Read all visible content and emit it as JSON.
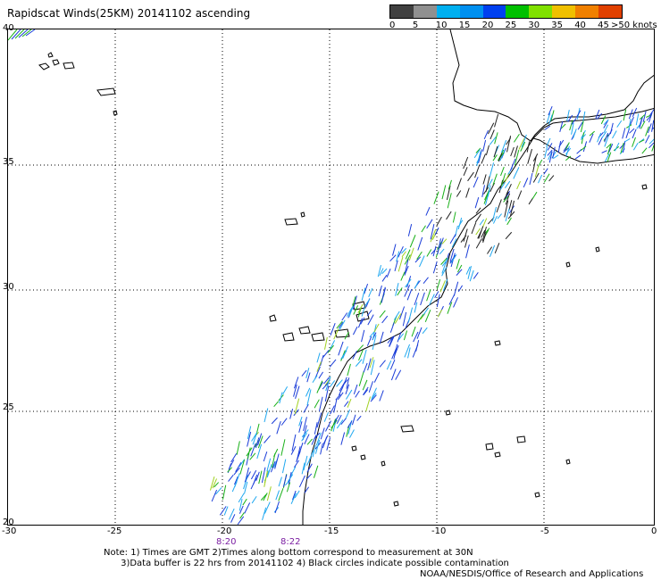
{
  "title": "Rapidscat Winds(25KM) 20141102 ascending",
  "legend": {
    "colors": [
      "#404040",
      "#909090",
      "#00b0f0",
      "#0090f0",
      "#0040f0",
      "#00c000",
      "#80e000",
      "#f0c000",
      "#f08000",
      "#e04000",
      "#e00000",
      "#f04040",
      "#803000",
      "#c080f0",
      "#f000f0",
      "#7000c0",
      "#c000f0"
    ],
    "labels": [
      "0",
      "5",
      "10",
      "15",
      "20",
      "25",
      "30",
      "35",
      "40",
      "45",
      ">50 knots"
    ]
  },
  "axes": {
    "lat_labels": [
      "40",
      "35",
      "30",
      "25",
      "20"
    ],
    "lon_labels": [
      "-30",
      "-25",
      "-20",
      "-15",
      "-10",
      "-5",
      "0"
    ]
  },
  "pass_times": [
    "8:20",
    "8:22"
  ],
  "notes": {
    "line1": "Note: 1) Times are GMT 2)Times along bottom correspond to measurement at 30N",
    "line2": "3)Data buffer is 22 hrs from 20141102 4) Black circles indicate possible contamination"
  },
  "credit": "NOAA/NESDIS/Office of Research and Applications",
  "wind_colors": {
    "dark": "#202020",
    "blue": "#1a3cd8",
    "lightblue": "#20a8f0",
    "green": "#18b018",
    "yellowgreen": "#a0d020"
  }
}
